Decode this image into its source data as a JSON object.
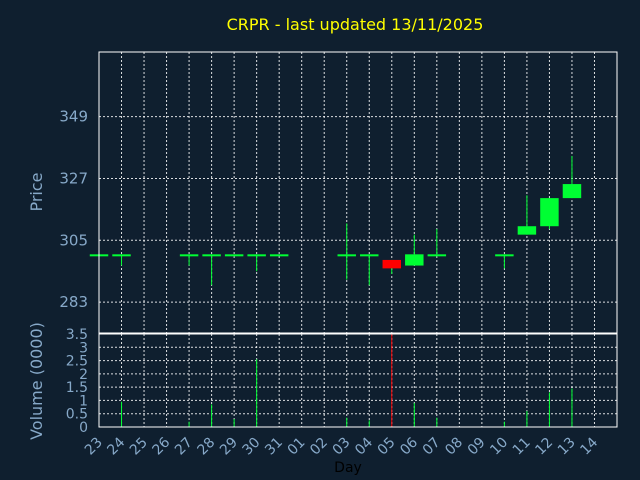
{
  "chart_data": [
    {
      "type": "candlestick",
      "title": "CRPR - last updated 13/11/2025",
      "ylabel": "Price",
      "xlabel": "Day",
      "ylim": [
        272,
        372
      ],
      "yticks": [
        "283",
        "305",
        "327",
        "349"
      ],
      "ytick_values": [
        283,
        305,
        327,
        349
      ],
      "x_tick_labels": [
        "23",
        "24",
        "25",
        "26",
        "27",
        "28",
        "29",
        "30",
        "31",
        "01",
        "02",
        "03",
        "04",
        "05",
        "06",
        "07",
        "08",
        "09",
        "10",
        "11",
        "12",
        "13",
        "14"
      ],
      "grid": true,
      "colors": {
        "up": "#00ff33",
        "down": "#ff0000",
        "wick": "#00ff33",
        "background": "#0f1f2f"
      },
      "candles": [
        {
          "day": "23",
          "open": 300,
          "close": 300,
          "high": 300,
          "low": 300
        },
        {
          "day": "24",
          "open": 300,
          "close": 300,
          "high": 300,
          "low": 296
        },
        {
          "day": "27",
          "open": 300,
          "close": 300,
          "high": 300,
          "low": 296
        },
        {
          "day": "28",
          "open": 300,
          "close": 300,
          "high": 300,
          "low": 289
        },
        {
          "day": "29",
          "open": 300,
          "close": 300,
          "high": 300,
          "low": 300
        },
        {
          "day": "30",
          "open": 300,
          "close": 300,
          "high": 300,
          "low": 294
        },
        {
          "day": "31",
          "open": 300,
          "close": 300,
          "high": 300,
          "low": 300
        },
        {
          "day": "03",
          "open": 300,
          "close": 300,
          "high": 311,
          "low": 291
        },
        {
          "day": "04",
          "open": 300,
          "close": 300,
          "high": 300,
          "low": 289
        },
        {
          "day": "05",
          "open": 298,
          "close": 295,
          "high": 298,
          "low": 293
        },
        {
          "day": "06",
          "open": 296,
          "close": 300,
          "high": 307,
          "low": 296
        },
        {
          "day": "07",
          "open": 300,
          "close": 300,
          "high": 309,
          "low": 300
        },
        {
          "day": "10",
          "open": 300,
          "close": 300,
          "high": 300,
          "low": 295
        },
        {
          "day": "11",
          "open": 307,
          "close": 310,
          "high": 321,
          "low": 307
        },
        {
          "day": "12",
          "open": 310,
          "close": 320,
          "high": 320,
          "low": 309
        },
        {
          "day": "13",
          "open": 320,
          "close": 325,
          "high": 335,
          "low": 320
        }
      ]
    },
    {
      "type": "bar",
      "ylabel": "Volume (0000)",
      "ylim": [
        0,
        3.5
      ],
      "yticks": [
        "0",
        "0.5",
        "1",
        "1.5",
        "2",
        "2.5",
        "3",
        "3.5"
      ],
      "ytick_values": [
        0,
        0.5,
        1,
        1.5,
        2,
        2.5,
        3,
        3.5
      ],
      "series": [
        {
          "values": [
            {
              "day": "24",
              "volume": 0.95,
              "direction": "up"
            },
            {
              "day": "27",
              "volume": 0.2,
              "direction": "up"
            },
            {
              "day": "28",
              "volume": 0.85,
              "direction": "up"
            },
            {
              "day": "29",
              "volume": 0.3,
              "direction": "up"
            },
            {
              "day": "30",
              "volume": 2.55,
              "direction": "up"
            },
            {
              "day": "03",
              "volume": 0.35,
              "direction": "up"
            },
            {
              "day": "04",
              "volume": 0.25,
              "direction": "up"
            },
            {
              "day": "05",
              "volume": 3.5,
              "direction": "down"
            },
            {
              "day": "06",
              "volume": 0.9,
              "direction": "up"
            },
            {
              "day": "07",
              "volume": 0.35,
              "direction": "up"
            },
            {
              "day": "10",
              "volume": 0.2,
              "direction": "up"
            },
            {
              "day": "11",
              "volume": 0.6,
              "direction": "up"
            },
            {
              "day": "12",
              "volume": 1.3,
              "direction": "up"
            },
            {
              "day": "13",
              "volume": 1.45,
              "direction": "up"
            }
          ]
        }
      ]
    }
  ]
}
